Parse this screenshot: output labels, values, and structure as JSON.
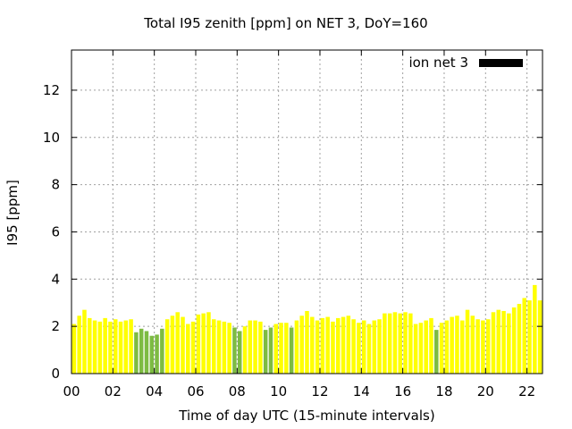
{
  "chart_data": {
    "type": "bar",
    "title": "Total I95 zenith [ppm] on NET 3, DoY=160",
    "xlabel": "Time of day UTC (15-minute intervals)",
    "ylabel": "I95 [ppm]",
    "xlim": [
      0,
      22.75
    ],
    "ylim": [
      0,
      13.7
    ],
    "xticks": [
      "00",
      "02",
      "04",
      "06",
      "08",
      "10",
      "12",
      "14",
      "16",
      "18",
      "20",
      "22"
    ],
    "xtick_values": [
      0,
      2,
      4,
      6,
      8,
      10,
      12,
      14,
      16,
      18,
      20,
      22
    ],
    "yticks": [
      0,
      2,
      4,
      6,
      8,
      10,
      12
    ],
    "grid": true,
    "legend": {
      "label": "ion net 3",
      "color": "#000000",
      "position": "top-right"
    },
    "colors": {
      "normal": "#ffff00",
      "low": "#7dbb42"
    },
    "interval_hours": 0.25,
    "low_threshold": 2.0,
    "series": [
      {
        "values": [
          2.1,
          2.45,
          2.7,
          2.35,
          2.25,
          2.2,
          2.35,
          2.2,
          2.3,
          2.2,
          2.25,
          2.3,
          1.75,
          1.9,
          1.8,
          1.6,
          1.65,
          1.9,
          2.3,
          2.45,
          2.6,
          2.4,
          2.1,
          2.2,
          2.5,
          2.55,
          2.6,
          2.3,
          2.25,
          2.2,
          2.15,
          1.95,
          1.8,
          2.0,
          2.25,
          2.25,
          2.2,
          1.85,
          1.95,
          2.1,
          2.15,
          2.15,
          1.95,
          2.25,
          2.45,
          2.65,
          2.4,
          2.25,
          2.35,
          2.4,
          2.2,
          2.35,
          2.4,
          2.45,
          2.3,
          2.15,
          2.25,
          2.1,
          2.25,
          2.3,
          2.55,
          2.55,
          2.6,
          2.55,
          2.6,
          2.55,
          2.1,
          2.15,
          2.25,
          2.35,
          1.85,
          2.15,
          2.25,
          2.4,
          2.45,
          2.25,
          2.7,
          2.45,
          2.3,
          2.25,
          2.3,
          2.6,
          2.7,
          2.65,
          2.55,
          2.8,
          2.95,
          3.2,
          3.1,
          3.75,
          3.1
        ]
      }
    ]
  }
}
